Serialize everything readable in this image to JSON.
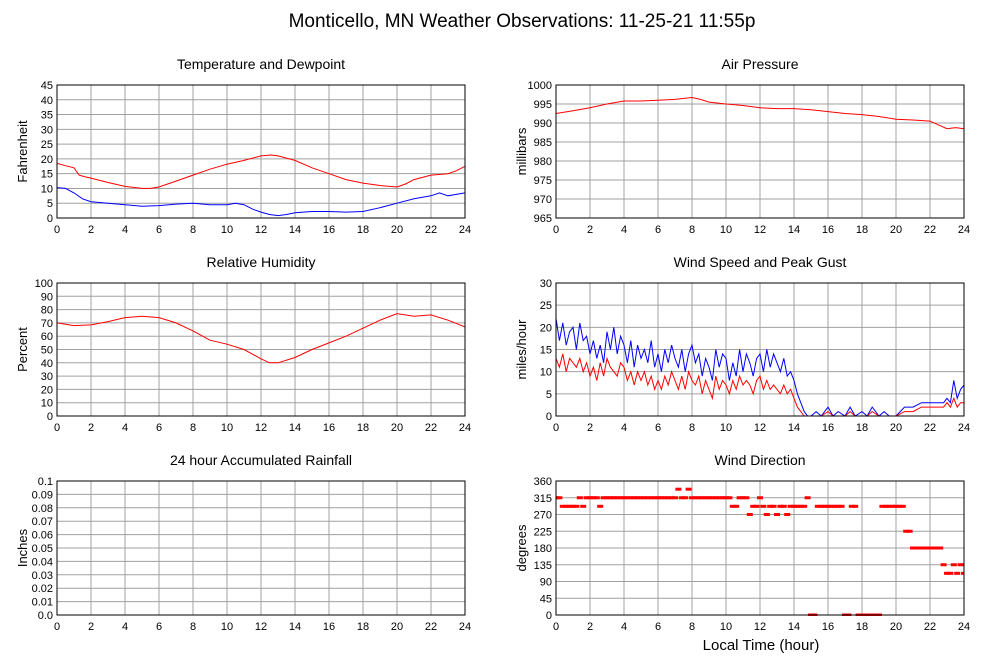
{
  "page": {
    "title": "Monticello, MN Weather Observations: 11-25-21 11:55p",
    "xlabel_bottom": "Local Time (hour)"
  },
  "colors": {
    "red": "#ff0000",
    "blue": "#0000ff",
    "grid": "#a0a0a0",
    "frame": "#000000"
  },
  "chart_data": [
    {
      "id": "temp",
      "type": "line",
      "title": "Temperature and Dewpoint",
      "ylabel": "Fahrenheit",
      "xlim": [
        0,
        24
      ],
      "ylim": [
        0,
        45
      ],
      "x_ticks": [
        0,
        2,
        4,
        6,
        8,
        10,
        12,
        14,
        16,
        18,
        20,
        22,
        24
      ],
      "y_ticks": [
        0,
        5,
        10,
        15,
        20,
        25,
        30,
        35,
        40,
        45
      ],
      "series": [
        {
          "color": "#ff0000",
          "x": [
            0,
            0.5,
            1,
            1.3,
            1.6,
            2,
            3,
            4,
            5,
            5.5,
            6,
            7,
            8,
            9,
            10,
            11,
            12,
            12.6,
            13,
            14,
            15,
            16,
            17,
            18,
            19,
            20,
            20.5,
            21,
            22,
            23,
            23.5,
            24
          ],
          "y": [
            18.5,
            17.7,
            17,
            14.5,
            14,
            13.5,
            12,
            10.7,
            10,
            10,
            10.5,
            12.5,
            14.5,
            16.5,
            18.2,
            19.5,
            21,
            21.3,
            21,
            19.5,
            17,
            15,
            13,
            11.8,
            11,
            10.5,
            11.5,
            13,
            14.5,
            15,
            16,
            17.5
          ]
        },
        {
          "color": "#0000ff",
          "x": [
            0,
            0.5,
            1,
            1.5,
            2,
            3,
            4,
            5,
            6,
            7,
            8,
            9,
            10,
            10.5,
            11,
            11.5,
            12,
            12.5,
            13,
            13.5,
            14,
            15,
            16,
            17,
            18,
            19,
            20,
            21,
            22,
            22.5,
            23,
            24
          ],
          "y": [
            10.3,
            10,
            8.5,
            6.5,
            5.5,
            5,
            4.5,
            4,
            4.2,
            4.7,
            5,
            4.5,
            4.5,
            5,
            4.5,
            3,
            2,
            1.2,
            0.8,
            1.2,
            1.8,
            2.2,
            2.2,
            2,
            2.2,
            3.5,
            5,
            6.5,
            7.5,
            8.5,
            7.5,
            8.5
          ]
        }
      ]
    },
    {
      "id": "pressure",
      "type": "line",
      "title": "Air Pressure",
      "ylabel": "millibars",
      "xlim": [
        0,
        24
      ],
      "ylim": [
        965,
        1000
      ],
      "x_ticks": [
        0,
        2,
        4,
        6,
        8,
        10,
        12,
        14,
        16,
        18,
        20,
        22,
        24
      ],
      "y_ticks": [
        965,
        970,
        975,
        980,
        985,
        990,
        995,
        1000
      ],
      "series": [
        {
          "color": "#ff0000",
          "x": [
            0,
            1,
            2,
            3,
            4,
            5,
            6,
            7,
            8,
            8.5,
            9,
            10,
            11,
            12,
            13,
            14,
            15,
            16,
            17,
            18,
            19,
            20,
            21,
            22,
            22.5,
            23,
            23.5,
            24
          ],
          "y": [
            992.5,
            993.2,
            994,
            995,
            995.8,
            995.8,
            996,
            996.2,
            996.7,
            996.2,
            995.5,
            995,
            994.6,
            994,
            993.8,
            993.8,
            993.5,
            993,
            992.5,
            992.2,
            991.7,
            991,
            990.8,
            990.5,
            989.5,
            988.5,
            988.8,
            988.5
          ]
        }
      ]
    },
    {
      "id": "humidity",
      "type": "line",
      "title": "Relative Humidity",
      "ylabel": "Percent",
      "xlim": [
        0,
        24
      ],
      "ylim": [
        0,
        100
      ],
      "x_ticks": [
        0,
        2,
        4,
        6,
        8,
        10,
        12,
        14,
        16,
        18,
        20,
        22,
        24
      ],
      "y_ticks": [
        0,
        10,
        20,
        30,
        40,
        50,
        60,
        70,
        80,
        90,
        100
      ],
      "series": [
        {
          "color": "#ff0000",
          "x": [
            0,
            0.5,
            1,
            2,
            3,
            4,
            5,
            6,
            7,
            8,
            9,
            10,
            11,
            12,
            12.5,
            13,
            14,
            15,
            16,
            17,
            18,
            19,
            20,
            21,
            22,
            23,
            24
          ],
          "y": [
            70,
            69,
            68,
            68.5,
            71,
            74,
            75,
            74,
            70,
            64,
            57,
            54,
            50,
            43,
            40,
            40,
            44,
            50,
            55,
            60,
            66,
            72,
            77,
            75,
            76,
            72,
            67
          ]
        }
      ]
    },
    {
      "id": "wind",
      "type": "line",
      "title": "Wind Speed and Peak Gust",
      "ylabel": "miles/hour",
      "xlim": [
        0,
        24
      ],
      "ylim": [
        0,
        30
      ],
      "x_ticks": [
        0,
        2,
        4,
        6,
        8,
        10,
        12,
        14,
        16,
        18,
        20,
        22,
        24
      ],
      "y_ticks": [
        0,
        5,
        10,
        15,
        20,
        25,
        30
      ],
      "series": [
        {
          "color": "#0000ff",
          "x": [
            0,
            0.2,
            0.4,
            0.6,
            0.8,
            1,
            1.2,
            1.4,
            1.6,
            1.8,
            2,
            2.2,
            2.4,
            2.6,
            2.8,
            3,
            3.2,
            3.4,
            3.6,
            3.8,
            4,
            4.2,
            4.4,
            4.6,
            4.8,
            5,
            5.2,
            5.4,
            5.6,
            5.8,
            6,
            6.2,
            6.4,
            6.6,
            6.8,
            7,
            7.2,
            7.4,
            7.6,
            7.8,
            8,
            8.2,
            8.4,
            8.6,
            8.8,
            9,
            9.2,
            9.4,
            9.6,
            9.8,
            10,
            10.2,
            10.4,
            10.6,
            10.8,
            11,
            11.2,
            11.4,
            11.6,
            11.8,
            12,
            12.2,
            12.4,
            12.6,
            12.8,
            13,
            13.2,
            13.4,
            13.6,
            13.8,
            14,
            14.2,
            14.4,
            14.6,
            14.8,
            15,
            15.3,
            15.6,
            16,
            16.3,
            16.6,
            17,
            17.3,
            17.6,
            18,
            18.3,
            18.6,
            19,
            19.3,
            19.6,
            20,
            20.5,
            21,
            21.5,
            22,
            22.3,
            22.6,
            22.8,
            23,
            23.2,
            23.4,
            23.6,
            23.8,
            24
          ],
          "y": [
            22,
            17,
            21,
            16,
            19,
            20,
            15,
            21,
            17,
            18,
            14,
            17,
            13,
            16,
            12,
            19,
            15,
            20,
            14,
            18,
            16,
            12,
            17,
            11,
            16,
            13,
            15,
            12,
            17,
            11,
            14,
            10,
            15,
            12,
            16,
            13,
            11,
            15,
            10,
            14,
            16,
            12,
            14,
            9,
            13,
            11,
            8,
            15,
            11,
            14,
            13,
            8,
            12,
            9,
            15,
            10,
            14,
            12,
            9,
            13,
            14,
            10,
            15,
            11,
            14,
            12,
            10,
            13,
            9,
            10,
            8,
            5,
            3,
            1,
            0,
            0,
            1,
            0,
            2,
            0,
            1,
            0,
            2,
            0,
            1,
            0,
            2,
            0,
            1,
            0,
            0,
            2,
            2,
            3,
            3,
            3,
            3,
            3,
            4,
            3,
            8,
            4,
            6,
            7
          ]
        },
        {
          "color": "#ff0000",
          "x": [
            0,
            0.2,
            0.4,
            0.6,
            0.8,
            1,
            1.2,
            1.4,
            1.6,
            1.8,
            2,
            2.2,
            2.4,
            2.6,
            2.8,
            3,
            3.2,
            3.4,
            3.6,
            3.8,
            4,
            4.2,
            4.4,
            4.6,
            4.8,
            5,
            5.2,
            5.4,
            5.6,
            5.8,
            6,
            6.2,
            6.4,
            6.6,
            6.8,
            7,
            7.2,
            7.4,
            7.6,
            7.8,
            8,
            8.2,
            8.4,
            8.6,
            8.8,
            9,
            9.2,
            9.4,
            9.6,
            9.8,
            10,
            10.2,
            10.4,
            10.6,
            10.8,
            11,
            11.2,
            11.4,
            11.6,
            11.8,
            12,
            12.2,
            12.4,
            12.6,
            12.8,
            13,
            13.2,
            13.4,
            13.6,
            13.8,
            14,
            14.2,
            14.4,
            14.6,
            14.8,
            15,
            15.3,
            15.6,
            16,
            16.3,
            16.6,
            17,
            17.3,
            17.6,
            18,
            18.3,
            18.6,
            19,
            19.3,
            19.6,
            20,
            20.5,
            21,
            21.5,
            22,
            22.3,
            22.6,
            22.8,
            23,
            23.2,
            23.4,
            23.6,
            23.8,
            24
          ],
          "y": [
            13,
            11,
            14,
            10,
            13,
            12,
            11,
            13,
            10,
            12,
            9,
            11,
            8,
            12,
            9,
            13,
            11,
            10,
            9,
            12,
            11,
            8,
            10,
            7,
            10,
            8,
            10,
            7,
            9,
            6,
            8,
            6,
            9,
            7,
            10,
            8,
            6,
            9,
            6,
            10,
            8,
            7,
            9,
            5,
            8,
            6,
            4,
            9,
            6,
            8,
            7,
            5,
            8,
            6,
            9,
            7,
            8,
            7,
            5,
            8,
            9,
            6,
            8,
            6,
            7,
            6,
            5,
            7,
            5,
            6,
            4,
            2,
            1,
            0,
            0,
            0,
            0,
            0,
            1,
            0,
            0,
            0,
            1,
            0,
            0,
            0,
            1,
            0,
            0,
            0,
            0,
            1,
            1,
            2,
            2,
            2,
            2,
            2,
            3,
            2,
            4,
            2,
            3,
            3
          ]
        }
      ]
    },
    {
      "id": "rain",
      "type": "line",
      "title": "24 hour Accumulated Rainfall",
      "ylabel": "Inches",
      "xlim": [
        0,
        24
      ],
      "ylim": [
        0,
        0.1
      ],
      "x_ticks": [
        0,
        2,
        4,
        6,
        8,
        10,
        12,
        14,
        16,
        18,
        20,
        22,
        24
      ],
      "y_ticks": [
        "0.0",
        "0.01",
        "0.02",
        "0.03",
        "0.04",
        "0.05",
        "0.06",
        "0.07",
        "0.08",
        "0.09",
        "0.1"
      ],
      "series": [
        {
          "color": "#ff0000",
          "x": [
            0,
            24
          ],
          "y": [
            0,
            0
          ]
        }
      ]
    },
    {
      "id": "direction",
      "type": "scatter",
      "title": "Wind Direction",
      "ylabel": "degrees",
      "xlim": [
        0,
        24
      ],
      "ylim": [
        0,
        360
      ],
      "x_ticks": [
        0,
        2,
        4,
        6,
        8,
        10,
        12,
        14,
        16,
        18,
        20,
        22,
        24
      ],
      "y_ticks": [
        0,
        45,
        90,
        135,
        180,
        225,
        270,
        315,
        360
      ],
      "series": [
        {
          "color": "#ff0000",
          "x": [
            0,
            0.2,
            0.4,
            0.6,
            0.8,
            1.0,
            1.2,
            1.4,
            1.6,
            1.8,
            2.0,
            2.2,
            2.4,
            2.6,
            2.8,
            3.0,
            3.2,
            3.4,
            3.6,
            3.8,
            4.0,
            4.2,
            4.4,
            4.6,
            4.8,
            5.0,
            5.2,
            5.4,
            5.6,
            5.8,
            6.0,
            6.2,
            6.4,
            6.6,
            6.8,
            7.0,
            7.2,
            7.4,
            7.6,
            7.8,
            8.0,
            8.2,
            8.4,
            8.6,
            8.8,
            9.0,
            9.2,
            9.4,
            9.6,
            9.8,
            10.0,
            10.2,
            10.4,
            10.6,
            10.8,
            11.0,
            11.2,
            11.4,
            11.6,
            11.8,
            12.0,
            12.2,
            12.4,
            12.6,
            12.8,
            13.0,
            13.2,
            13.4,
            13.6,
            13.8,
            14.0,
            14.2,
            14.4,
            14.6,
            14.8,
            15.0,
            15.2,
            15.4,
            15.6,
            15.8,
            16.0,
            16.2,
            16.4,
            16.6,
            16.8,
            17.0,
            17.2,
            17.4,
            17.6,
            17.8,
            18.0,
            18.2,
            18.4,
            18.6,
            18.8,
            19.0,
            19.2,
            19.4,
            19.6,
            19.8,
            20.0,
            20.2,
            20.4,
            20.6,
            20.8,
            21.0,
            21.2,
            21.4,
            21.6,
            21.8,
            22.0,
            22.2,
            22.4,
            22.6,
            22.8,
            23.0,
            23.2,
            23.4,
            23.6,
            23.8,
            24.0
          ],
          "y": [
            315,
            315,
            292,
            292,
            292,
            292,
            292,
            315,
            292,
            315,
            315,
            315,
            315,
            292,
            315,
            315,
            315,
            315,
            315,
            315,
            315,
            315,
            315,
            315,
            315,
            315,
            315,
            315,
            315,
            315,
            315,
            315,
            315,
            315,
            315,
            315,
            338,
            315,
            315,
            338,
            315,
            315,
            315,
            315,
            315,
            315,
            315,
            315,
            315,
            315,
            315,
            315,
            292,
            292,
            315,
            315,
            315,
            270,
            292,
            292,
            315,
            292,
            270,
            292,
            292,
            270,
            292,
            292,
            270,
            292,
            292,
            292,
            292,
            292,
            315,
            0,
            0,
            292,
            292,
            292,
            292,
            292,
            292,
            292,
            292,
            0,
            0,
            292,
            292,
            0,
            0,
            0,
            0,
            0,
            0,
            0,
            292,
            292,
            292,
            292,
            292,
            292,
            292,
            225,
            225,
            180,
            180,
            180,
            180,
            180,
            180,
            180,
            180,
            180,
            135,
            112,
            112,
            135,
            112,
            135,
            112
          ]
        }
      ]
    }
  ]
}
